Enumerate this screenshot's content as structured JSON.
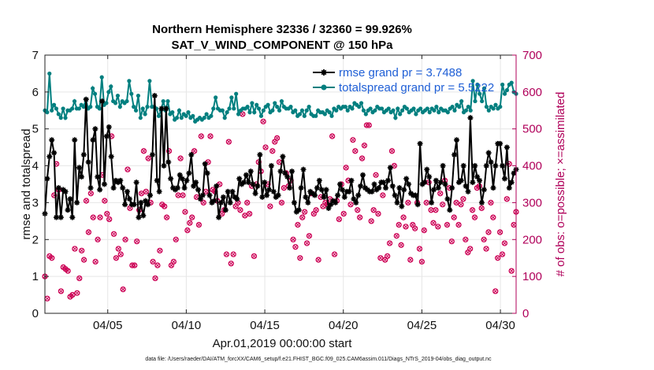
{
  "chart_data": {
    "type": "line",
    "title": "Northern Hemisphere 32336 / 32360 = 99.926%",
    "subtitle": "SAT_V_WIND_COMPONENT @ 150 hPa",
    "xlabel": "Apr.01,2019 00:00:00 start",
    "ylabel": "rmse and totalspread",
    "ylabel_right": "# of obs: o=possible; ×=assimilated",
    "xlim": [
      1,
      31
    ],
    "ylim": [
      0,
      7
    ],
    "ylim_right": [
      0,
      700
    ],
    "x_ticks": [
      5,
      10,
      15,
      20,
      25,
      30
    ],
    "x_tick_labels": [
      "04/05",
      "04/10",
      "04/15",
      "04/20",
      "04/25",
      "04/30"
    ],
    "y_ticks": [
      0,
      1,
      2,
      3,
      4,
      5,
      6,
      7
    ],
    "y_tick_labels": [
      "0",
      "1",
      "2",
      "3",
      "4",
      "5",
      "6",
      "7"
    ],
    "y_right_ticks": [
      0,
      100,
      200,
      300,
      400,
      500,
      600,
      700
    ],
    "y_right_tick_labels": [
      "0",
      "100",
      "200",
      "300",
      "400",
      "500",
      "600",
      "700"
    ],
    "grid": true,
    "legend_position": "top-right",
    "colors": {
      "rmse": "#000000",
      "spread": "#007f7f",
      "obs": "#cc0055",
      "right_axis": "#b0005a",
      "legend_text": "#1f5fd6"
    },
    "series": [
      {
        "name": "rmse grand pr = 3.7488",
        "color": "#000000",
        "marker": "asterisk",
        "values": [
          2.7,
          3.65,
          4.25,
          4.7,
          4.35,
          2.6,
          3.4,
          2.6,
          3.35,
          3.3,
          2.8,
          3.1,
          2.6,
          4.7,
          3.0,
          3.95,
          3.7,
          4.3,
          5.8,
          4.1,
          3.4,
          4.7,
          5.0,
          3.7,
          3.35,
          5.75,
          3.5,
          4.8,
          5.05,
          4.25,
          3.4,
          3.6,
          3.55,
          3.6,
          3.4,
          2.95,
          3.3,
          3.1,
          2.95,
          2.95,
          3.55,
          2.6,
          3.0,
          2.65,
          3.05,
          2.95,
          3.2,
          4.3,
          5.9,
          3.6,
          3.3,
          5.55,
          4.0,
          5.55,
          4.1,
          3.65,
          3.4,
          3.35,
          3.4,
          3.75,
          3.65,
          3.4,
          3.6,
          3.8,
          4.3,
          3.45,
          3.55,
          3.35,
          3.1,
          3.2,
          4.05,
          3.8,
          3.2,
          3.0,
          3.05,
          3.45,
          2.6,
          3.0,
          3.15,
          2.8,
          3.3,
          3.0,
          3.3,
          3.15,
          3.1,
          3.65,
          3.5,
          3.55,
          3.75,
          3.55,
          3.85,
          3.5,
          3.25,
          3.45,
          4.3,
          3.15,
          3.55,
          3.2,
          3.35,
          4.0,
          3.3,
          3.15,
          3.2,
          3.85,
          4.25,
          3.8,
          3.7,
          3.4,
          3.85,
          3.0,
          2.75,
          2.8,
          3.4,
          3.9,
          3.15,
          3.0,
          3.3,
          3.25,
          3.2,
          3.4,
          3.6,
          3.35,
          3.15,
          3.35,
          2.85,
          2.95,
          3.05,
          3.0,
          3.2,
          3.5,
          3.35,
          3.15,
          3.3,
          3.3,
          3.6,
          3.1,
          3.0,
          3.2,
          3.45,
          3.75,
          3.4,
          3.35,
          3.3,
          3.3,
          3.5,
          3.35,
          3.4,
          3.55,
          3.55,
          3.4,
          3.6,
          3.95,
          3.45,
          3.2,
          3.0,
          3.4,
          2.9,
          3.35,
          3.65,
          3.5,
          3.25,
          3.2,
          3.2,
          2.95,
          4.6,
          3.5,
          3.55,
          3.9,
          3.7,
          3.0,
          3.35,
          3.6,
          3.4,
          3.55,
          4.0,
          3.5,
          3.1,
          2.8,
          3.4,
          4.3,
          4.7,
          3.55,
          3.6,
          4.0,
          3.45,
          3.3,
          5.3,
          3.55,
          4.0,
          3.7,
          3.6,
          3.0,
          3.35,
          4.0,
          4.35,
          4.1,
          3.4,
          4.0,
          4.6,
          4.6,
          4.0,
          3.65,
          4.5,
          3.4,
          3.55,
          3.8,
          3.9
        ]
      },
      {
        "name": "totalspread grand pr = 5.5222",
        "color": "#007f7f",
        "marker": "circle",
        "values": [
          5.5,
          5.45,
          6.5,
          5.5,
          5.65,
          5.55,
          5.4,
          5.3,
          5.55,
          5.3,
          5.5,
          5.5,
          5.55,
          5.75,
          5.55,
          5.55,
          5.65,
          5.6,
          5.8,
          5.55,
          5.6,
          6.1,
          5.95,
          5.6,
          5.55,
          6.4,
          5.65,
          5.7,
          6.0,
          6.15,
          5.75,
          5.7,
          5.9,
          5.6,
          5.75,
          5.7,
          5.75,
          6.3,
          5.95,
          5.6,
          5.5,
          5.9,
          5.3,
          5.55,
          5.4,
          5.6,
          6.3,
          5.6,
          5.6,
          5.55,
          5.35,
          5.5,
          5.75,
          5.5,
          5.75,
          5.4,
          5.45,
          5.25,
          5.3,
          5.5,
          5.3,
          5.4,
          5.35,
          5.45,
          5.3,
          5.35,
          5.2,
          5.25,
          5.3,
          5.25,
          5.3,
          5.4,
          5.3,
          5.35,
          5.55,
          5.85,
          5.55,
          5.5,
          5.5,
          5.3,
          5.45,
          5.55,
          5.85,
          5.55,
          5.95,
          5.4,
          5.5,
          5.55,
          5.55,
          5.6,
          5.45,
          5.7,
          5.45,
          5.65,
          5.55,
          5.35,
          5.5,
          5.6,
          5.65,
          5.45,
          5.5,
          5.7,
          5.6,
          5.5,
          5.75,
          5.6,
          5.55,
          5.55,
          5.6,
          5.45,
          5.5,
          5.35,
          5.4,
          5.5,
          5.35,
          5.5,
          5.6,
          5.4,
          5.35,
          5.35,
          5.5,
          5.45,
          5.45,
          5.4,
          5.5,
          5.45,
          5.35,
          5.55,
          5.5,
          5.6,
          5.55,
          5.6,
          5.6,
          5.5,
          5.6,
          5.55,
          5.7,
          5.65,
          5.6,
          5.7,
          5.5,
          5.4,
          5.5,
          5.55,
          5.45,
          5.5,
          5.6,
          5.55,
          5.55,
          5.45,
          5.5,
          5.55,
          5.45,
          5.5,
          5.3,
          5.55,
          5.4,
          5.5,
          5.6,
          5.55,
          5.45,
          5.5,
          5.55,
          5.4,
          5.5,
          5.55,
          5.45,
          5.5,
          5.55,
          5.45,
          5.55,
          5.5,
          5.6,
          5.45,
          5.55,
          5.5,
          5.5,
          5.45,
          5.55,
          5.6,
          5.5,
          5.65,
          5.6,
          5.75,
          5.45,
          5.5,
          5.6,
          5.5,
          6.3,
          5.75,
          6.2,
          5.95,
          5.75,
          6.1,
          5.6,
          5.5,
          5.6,
          5.55,
          5.65,
          5.55,
          5.6,
          6.2,
          5.95,
          6.05,
          6.2,
          6.25,
          6.0,
          5.95
        ]
      },
      {
        "name": "# of obs (possible / assimilated)",
        "axis": "right",
        "color": "#cc0055",
        "marker": "circle-x",
        "values": [
          100,
          40,
          155,
          150,
          320,
          405,
          335,
          60,
          125,
          120,
          115,
          45,
          50,
          175,
          55,
          95,
          170,
          145,
          305,
          220,
          325,
          260,
          140,
          200,
          260,
          375,
          305,
          270,
          255,
          480,
          215,
          150,
          175,
          160,
          65,
          200,
          390,
          285,
          130,
          130,
          195,
          280,
          325,
          440,
          330,
          420,
          300,
          140,
          95,
          130,
          170,
          295,
          290,
          260,
          440,
          130,
          140,
          200,
          320,
          420,
          320,
          275,
          225,
          245,
          260,
          440,
          315,
          240,
          480,
          300,
          330,
          410,
          480,
          335,
          330,
          305,
          350,
          270,
          280,
          160,
          465,
          135,
          160,
          290,
          300,
          280,
          540,
          265,
          300,
          270,
          345,
          155,
          350,
          410,
          385,
          520,
          450,
          350,
          290,
          440,
          465,
          475,
          410,
          300,
          340,
          380,
          345,
          360,
          200,
          180,
          240,
          150,
          260,
          275,
          190,
          210,
          325,
          270,
          280,
          145,
          315,
          290,
          300,
          295,
          310,
          480,
          160,
          305,
          255,
          350,
          270,
          395,
          360,
          295,
          470,
          440,
          280,
          260,
          420,
          455,
          510,
          510,
          250,
          280,
          375,
          270,
          150,
          320,
          145,
          155,
          190,
          440,
          400,
          210,
          240,
          185,
          260,
          235,
          300,
          145,
          240,
          230,
          300,
          175,
          140,
          225,
          300,
          355,
          280,
          245,
          280,
          235,
          325,
          295,
          360,
          240,
          340,
          195,
          260,
          300,
          240,
          295,
          310,
          200,
          165,
          175,
          280,
          260,
          340,
          345,
          285,
          200,
          175,
          220,
          300,
          260,
          60,
          150,
          220,
          160,
          190,
          310,
          405,
          115,
          240,
          275
        ]
      }
    ]
  },
  "footer": "data file: /Users/raeder/DAI/ATM_forcXX/CAM6_setup/f.e21.FHIST_BGC.f09_025.CAM6assim.011/Diags_NTrS_2019-04/obs_diag_output.nc"
}
